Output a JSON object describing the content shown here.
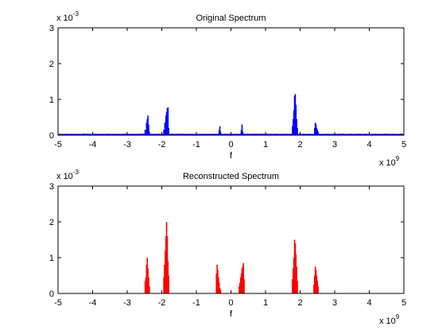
{
  "chart_data": [
    {
      "type": "bar",
      "title": "Original Spectrum",
      "xlabel": "f",
      "ylabel": "",
      "xlim": [
        -5,
        5
      ],
      "ylim": [
        0,
        3
      ],
      "x_unit_label": "x 10",
      "x_unit_exp": "9",
      "y_unit_label": "x 10",
      "y_unit_exp": "-3",
      "x_ticks": [
        "-5",
        "-4",
        "-3",
        "-2",
        "-1",
        "0",
        "1",
        "2",
        "3",
        "4",
        "5"
      ],
      "y_ticks": [
        "0",
        "1",
        "2",
        "3"
      ],
      "color": "#0000ff",
      "grid": false,
      "noise_floor": 0.04,
      "series": [
        {
          "x": [
            -2.48,
            -2.44,
            -2.42,
            -2.4,
            -2.38,
            -2.36
          ],
          "y": [
            0.15,
            0.35,
            0.45,
            0.55,
            0.3,
            0.1
          ]
        },
        {
          "x": [
            -1.94,
            -1.91,
            -1.88,
            -1.86,
            -1.84,
            -1.82,
            -1.8
          ],
          "y": [
            0.15,
            0.35,
            0.55,
            0.65,
            0.75,
            0.78,
            0.2
          ]
        },
        {
          "x": [
            -0.34,
            -0.32,
            -0.3
          ],
          "y": [
            0.15,
            0.25,
            0.1
          ]
        },
        {
          "x": [
            0.3,
            0.32,
            0.34
          ],
          "y": [
            0.15,
            0.3,
            0.1
          ]
        },
        {
          "x": [
            1.78,
            1.8,
            1.82,
            1.84,
            1.86,
            1.88,
            1.9,
            1.92
          ],
          "y": [
            0.25,
            0.45,
            0.7,
            1.1,
            1.15,
            0.85,
            0.45,
            0.2
          ]
        },
        {
          "x": [
            2.42,
            2.44,
            2.46,
            2.48,
            2.5,
            2.52
          ],
          "y": [
            0.2,
            0.35,
            0.3,
            0.2,
            0.15,
            0.1
          ]
        }
      ]
    },
    {
      "type": "bar",
      "title": "Reconstructed Spectrum",
      "xlabel": "f",
      "ylabel": "",
      "xlim": [
        -5,
        5
      ],
      "ylim": [
        0,
        3
      ],
      "x_unit_label": "x 10",
      "x_unit_exp": "9",
      "y_unit_label": "x 10",
      "y_unit_exp": "-3",
      "x_ticks": [
        "-5",
        "-4",
        "-3",
        "-2",
        "-1",
        "0",
        "1",
        "2",
        "3",
        "4",
        "5"
      ],
      "y_ticks": [
        "0",
        "1",
        "2",
        "3"
      ],
      "color": "#ff0000",
      "grid": false,
      "noise_floor": 0,
      "series": [
        {
          "x": [
            -2.48,
            -2.46,
            -2.44,
            -2.42,
            -2.4,
            -2.38,
            -2.36
          ],
          "y": [
            0.35,
            0.45,
            0.8,
            1.0,
            0.7,
            0.45,
            0.2
          ]
        },
        {
          "x": [
            -1.94,
            -1.92,
            -1.9,
            -1.88,
            -1.86,
            -1.84,
            -1.82,
            -1.8
          ],
          "y": [
            0.45,
            0.8,
            1.2,
            1.6,
            2.0,
            1.6,
            0.9,
            0.5
          ]
        },
        {
          "x": [
            -0.42,
            -0.4,
            -0.38,
            -0.36,
            -0.34,
            -0.32,
            -0.3
          ],
          "y": [
            0.55,
            0.8,
            0.65,
            0.45,
            0.3,
            0.15,
            0.1
          ]
        },
        {
          "x": [
            0.24,
            0.26,
            0.28,
            0.3,
            0.32,
            0.34,
            0.36,
            0.38
          ],
          "y": [
            0.2,
            0.3,
            0.45,
            0.55,
            0.7,
            0.75,
            0.85,
            0.4
          ]
        },
        {
          "x": [
            1.78,
            1.8,
            1.82,
            1.84,
            1.86,
            1.88,
            1.9,
            1.92
          ],
          "y": [
            0.4,
            0.7,
            1.0,
            1.5,
            1.4,
            1.1,
            0.75,
            0.35
          ]
        },
        {
          "x": [
            2.4,
            2.42,
            2.44,
            2.46,
            2.48,
            2.5,
            2.52
          ],
          "y": [
            0.25,
            0.5,
            0.75,
            0.65,
            0.5,
            0.35,
            0.2
          ]
        }
      ]
    }
  ]
}
